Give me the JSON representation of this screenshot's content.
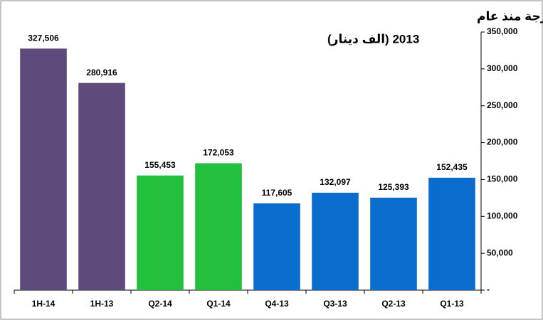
{
  "chart_data": {
    "type": "bar",
    "title_lines": [
      "صافي الربح الربع والنصف سنوي لقطاع البنوك الكويتية المدرجة منذ عام",
      "2013 (الف دينار)"
    ],
    "categories": [
      "1H-14",
      "1H-13",
      "Q2-14",
      "Q1-14",
      "Q4-13",
      "Q3-13",
      "Q2-13",
      "Q1-13"
    ],
    "values": [
      327506,
      280916,
      155453,
      172053,
      117605,
      132097,
      125393,
      152435
    ],
    "value_labels": [
      "327,506",
      "280,916",
      "155,453",
      "172,053",
      "117,605",
      "132,097",
      "125,393",
      "152,435"
    ],
    "colors": [
      "#5f4a7c",
      "#5f4a7c",
      "#22c03c",
      "#22c03c",
      "#0a6ccc",
      "#0a6ccc",
      "#0a6ccc",
      "#0a6ccc"
    ],
    "ylim": [
      0,
      350000
    ],
    "yticks": [
      {
        "value": 0,
        "label": "-"
      },
      {
        "value": 50000,
        "label": "50,000"
      },
      {
        "value": 100000,
        "label": "100,000"
      },
      {
        "value": 150000,
        "label": "150,000"
      },
      {
        "value": 200000,
        "label": "200,000"
      },
      {
        "value": 250000,
        "label": "250,000"
      },
      {
        "value": 300000,
        "label": "300,000"
      },
      {
        "value": 350000,
        "label": "350,000"
      }
    ],
    "y_axis_side": "right"
  }
}
